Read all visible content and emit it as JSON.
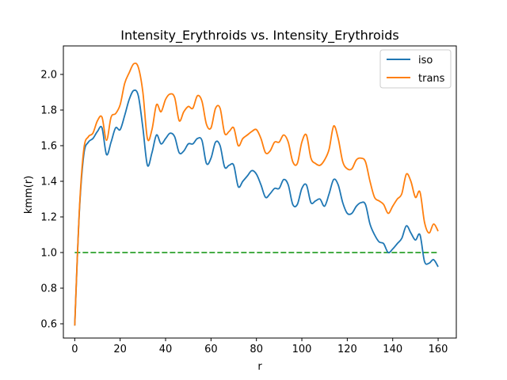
{
  "chart_data": {
    "type": "line",
    "title": "Intensity_Erythroids vs. Intensity_Erythroids",
    "xlabel": "r",
    "ylabel": "kmm(r)",
    "xlim": [
      -5,
      168
    ],
    "ylim": [
      0.52,
      2.16
    ],
    "xticks": [
      0,
      20,
      40,
      60,
      80,
      100,
      120,
      140,
      160
    ],
    "yticks": [
      0.6,
      0.8,
      1.0,
      1.2,
      1.4,
      1.6,
      1.8,
      2.0
    ],
    "ytick_labels": [
      "0.6",
      "0.8",
      "1.0",
      "1.2",
      "1.4",
      "1.6",
      "1.8",
      "2.0"
    ],
    "grid": false,
    "legend_position": "top-right",
    "series": [
      {
        "name": "iso",
        "color": "#1f77b4",
        "style": "solid",
        "x": [
          0,
          2,
          4,
          6,
          8,
          10,
          12,
          14,
          16,
          18,
          20,
          22,
          24,
          26,
          28,
          30,
          32,
          34,
          36,
          38,
          40,
          42,
          44,
          46,
          48,
          50,
          52,
          54,
          56,
          58,
          60,
          62,
          64,
          66,
          68,
          70,
          72,
          74,
          76,
          78,
          80,
          82,
          84,
          86,
          88,
          90,
          92,
          94,
          96,
          98,
          100,
          102,
          104,
          106,
          108,
          110,
          112,
          114,
          116,
          118,
          120,
          122,
          124,
          126,
          128,
          130,
          132,
          134,
          136,
          138,
          140,
          142,
          144,
          146,
          148,
          150,
          152,
          154,
          156,
          158,
          160
        ],
        "values": [
          0.59,
          1.22,
          1.55,
          1.62,
          1.64,
          1.68,
          1.7,
          1.55,
          1.62,
          1.7,
          1.69,
          1.77,
          1.86,
          1.91,
          1.88,
          1.7,
          1.49,
          1.56,
          1.66,
          1.61,
          1.64,
          1.67,
          1.65,
          1.56,
          1.57,
          1.61,
          1.61,
          1.64,
          1.63,
          1.5,
          1.53,
          1.62,
          1.6,
          1.48,
          1.49,
          1.49,
          1.37,
          1.4,
          1.43,
          1.46,
          1.44,
          1.38,
          1.31,
          1.33,
          1.36,
          1.36,
          1.41,
          1.38,
          1.27,
          1.27,
          1.36,
          1.38,
          1.28,
          1.29,
          1.3,
          1.26,
          1.33,
          1.41,
          1.38,
          1.28,
          1.22,
          1.22,
          1.26,
          1.28,
          1.27,
          1.16,
          1.1,
          1.06,
          1.05,
          1.0,
          1.02,
          1.05,
          1.08,
          1.15,
          1.11,
          1.07,
          1.1,
          0.95,
          0.94,
          0.96,
          0.92
        ]
      },
      {
        "name": "trans",
        "color": "#ff7f0e",
        "style": "solid",
        "x": [
          0,
          2,
          4,
          6,
          8,
          10,
          12,
          14,
          16,
          18,
          20,
          22,
          24,
          26,
          28,
          30,
          32,
          34,
          36,
          38,
          40,
          42,
          44,
          46,
          48,
          50,
          52,
          54,
          56,
          58,
          60,
          62,
          64,
          66,
          68,
          70,
          72,
          74,
          76,
          78,
          80,
          82,
          84,
          86,
          88,
          90,
          92,
          94,
          96,
          98,
          100,
          102,
          104,
          106,
          108,
          110,
          112,
          114,
          116,
          118,
          120,
          122,
          124,
          126,
          128,
          130,
          132,
          134,
          136,
          138,
          140,
          142,
          144,
          146,
          148,
          150,
          152,
          154,
          156,
          158,
          160
        ],
        "values": [
          0.59,
          1.23,
          1.58,
          1.65,
          1.67,
          1.74,
          1.76,
          1.63,
          1.76,
          1.78,
          1.83,
          1.95,
          2.01,
          2.06,
          2.04,
          1.9,
          1.64,
          1.69,
          1.83,
          1.79,
          1.86,
          1.89,
          1.87,
          1.74,
          1.79,
          1.82,
          1.81,
          1.88,
          1.85,
          1.72,
          1.7,
          1.81,
          1.81,
          1.67,
          1.68,
          1.7,
          1.6,
          1.64,
          1.66,
          1.68,
          1.69,
          1.64,
          1.56,
          1.57,
          1.62,
          1.62,
          1.66,
          1.62,
          1.51,
          1.5,
          1.62,
          1.66,
          1.53,
          1.5,
          1.49,
          1.52,
          1.58,
          1.71,
          1.64,
          1.51,
          1.47,
          1.47,
          1.52,
          1.53,
          1.51,
          1.4,
          1.31,
          1.29,
          1.27,
          1.22,
          1.26,
          1.3,
          1.33,
          1.44,
          1.4,
          1.31,
          1.34,
          1.17,
          1.11,
          1.16,
          1.12
        ]
      },
      {
        "name": "",
        "color": "#2ca02c",
        "style": "dashed",
        "x": [
          0,
          160
        ],
        "values": [
          1.0,
          1.0
        ]
      }
    ]
  }
}
